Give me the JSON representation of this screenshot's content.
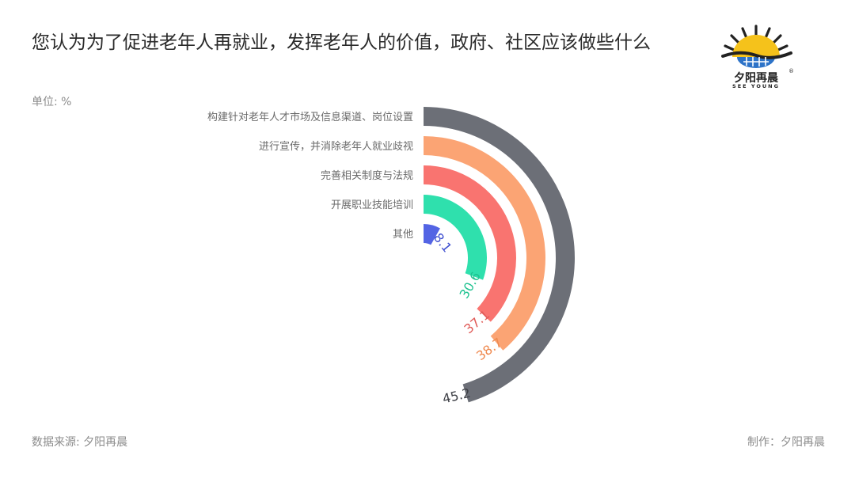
{
  "title": "您认为为了促进老年人再就业，发挥老年人的价值，政府、社区应该做些什么",
  "unit_label": "单位: %",
  "source": "数据来源: 夕阳再晨",
  "maker": "制作：夕阳再晨",
  "logo": {
    "cn": "夕阳再晨",
    "en": "SEE YOUNG",
    "reg": "®"
  },
  "chart_data": {
    "type": "radial-bar",
    "unit": "%",
    "max": 100,
    "categories": [
      "构建针对老年人才市场及信息渠道、岗位设置",
      "进行宣传，并消除老年人就业歧视",
      "完善相关制度与法规",
      "开展职业技能培训",
      "其他"
    ],
    "values": [
      45.2,
      38.7,
      37.1,
      30.6,
      8.1
    ],
    "colors": [
      "#6c6f77",
      "#fba474",
      "#f97470",
      "#2fe0ad",
      "#5364e4"
    ],
    "label_colors": [
      "#3d3f45",
      "#ef8a50",
      "#e05a57",
      "#1dc28f",
      "#3f4fd0"
    ]
  }
}
